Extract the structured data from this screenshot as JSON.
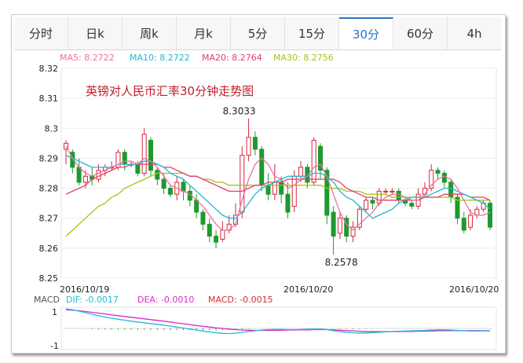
{
  "tabs": [
    {
      "label": "分时",
      "active": false
    },
    {
      "label": "日k",
      "active": false
    },
    {
      "label": "周k",
      "active": false
    },
    {
      "label": "月k",
      "active": false
    },
    {
      "label": "5分",
      "active": false
    },
    {
      "label": "15分",
      "active": false
    },
    {
      "label": "30分",
      "active": true
    },
    {
      "label": "60分",
      "active": false
    },
    {
      "label": "4h",
      "active": false
    }
  ],
  "colors": {
    "up": "#d6283c",
    "down": "#1c9a2e",
    "ma5": "#ef6fa1",
    "ma10": "#23b5d0",
    "ma20": "#e0406e",
    "ma30": "#a4c414",
    "dif": "#25b9d6",
    "dea": "#d62cc8",
    "macd": "#d72d2d",
    "active_tab": "#2a72c8"
  },
  "chart_data": {
    "type": "candlestick",
    "title": "英镑对人民币汇率30分钟走势图",
    "ma_legend": [
      {
        "label": "MA5: 8.2722",
        "key": "ma5"
      },
      {
        "label": "MA10: 8.2722",
        "key": "ma10"
      },
      {
        "label": "MA20: 8.2764",
        "key": "ma20"
      },
      {
        "label": "MA30: 8.2756",
        "key": "ma30"
      }
    ],
    "yticks": [
      "8.32",
      "8.31",
      "8.3",
      "8.29",
      "8.28",
      "8.27",
      "8.26",
      "8.25"
    ],
    "ylim": [
      8.25,
      8.32
    ],
    "xticks": [
      "2016/10/19",
      "2016/10/20",
      "2016/10/20"
    ],
    "annotations": {
      "high": "8.3033",
      "low": "8.2578"
    },
    "candles": [
      [
        8.293,
        8.295,
        8.296,
        8.288
      ],
      [
        8.292,
        8.287,
        8.293,
        8.285
      ],
      [
        8.287,
        8.282,
        8.29,
        8.281
      ],
      [
        8.282,
        8.284,
        8.286,
        8.28
      ],
      [
        8.284,
        8.283,
        8.287,
        8.281
      ],
      [
        8.283,
        8.286,
        8.288,
        8.282
      ],
      [
        8.286,
        8.287,
        8.288,
        8.284
      ],
      [
        8.287,
        8.287,
        8.289,
        8.286
      ],
      [
        8.287,
        8.292,
        8.293,
        8.286
      ],
      [
        8.292,
        8.288,
        8.293,
        8.286
      ],
      [
        8.288,
        8.288,
        8.289,
        8.287
      ],
      [
        8.288,
        8.285,
        8.289,
        8.284
      ],
      [
        8.285,
        8.298,
        8.3,
        8.284
      ],
      [
        8.296,
        8.286,
        8.297,
        8.284
      ],
      [
        8.286,
        8.283,
        8.287,
        8.281
      ],
      [
        8.283,
        8.28,
        8.285,
        8.278
      ],
      [
        8.28,
        8.278,
        8.281,
        8.277
      ],
      [
        8.278,
        8.282,
        8.284,
        8.276
      ],
      [
        8.282,
        8.279,
        8.283,
        8.276
      ],
      [
        8.279,
        8.276,
        8.281,
        8.274
      ],
      [
        8.276,
        8.272,
        8.278,
        8.27
      ],
      [
        8.272,
        8.268,
        8.273,
        8.266
      ],
      [
        8.268,
        8.264,
        8.27,
        8.262
      ],
      [
        8.264,
        8.262,
        8.266,
        8.26
      ],
      [
        8.263,
        8.266,
        8.269,
        8.262
      ],
      [
        8.266,
        8.268,
        8.271,
        8.265
      ],
      [
        8.268,
        8.271,
        8.275,
        8.267
      ],
      [
        8.272,
        8.291,
        8.294,
        8.27
      ],
      [
        8.291,
        8.297,
        8.3033,
        8.289
      ],
      [
        8.297,
        8.293,
        8.299,
        8.291
      ],
      [
        8.293,
        8.281,
        8.294,
        8.279
      ],
      [
        8.281,
        8.278,
        8.285,
        8.276
      ],
      [
        8.278,
        8.282,
        8.288,
        8.276
      ],
      [
        8.282,
        8.278,
        8.284,
        8.275
      ],
      [
        8.278,
        8.272,
        8.282,
        8.27
      ],
      [
        8.274,
        8.284,
        8.286,
        8.272
      ],
      [
        8.284,
        8.287,
        8.289,
        8.282
      ],
      [
        8.287,
        8.282,
        8.288,
        8.28
      ],
      [
        8.282,
        8.296,
        8.297,
        8.281
      ],
      [
        8.294,
        8.286,
        8.295,
        8.283
      ],
      [
        8.286,
        8.271,
        8.287,
        8.268
      ],
      [
        8.272,
        8.264,
        8.274,
        8.2578
      ],
      [
        8.265,
        8.27,
        8.272,
        8.263
      ],
      [
        8.27,
        8.264,
        8.271,
        8.262
      ],
      [
        8.264,
        8.267,
        8.269,
        8.262
      ],
      [
        8.267,
        8.273,
        8.274,
        8.266
      ],
      [
        8.273,
        8.276,
        8.277,
        8.272
      ],
      [
        8.276,
        8.275,
        8.277,
        8.273
      ],
      [
        8.275,
        8.279,
        8.28,
        8.274
      ],
      [
        8.279,
        8.279,
        8.28,
        8.278
      ],
      [
        8.279,
        8.279,
        8.28,
        8.278
      ],
      [
        8.279,
        8.276,
        8.28,
        8.275
      ],
      [
        8.276,
        8.275,
        8.277,
        8.274
      ],
      [
        8.275,
        8.274,
        8.276,
        8.273
      ],
      [
        8.274,
        8.278,
        8.28,
        8.273
      ],
      [
        8.278,
        8.28,
        8.282,
        8.277
      ],
      [
        8.28,
        8.286,
        8.288,
        8.279
      ],
      [
        8.286,
        8.285,
        8.287,
        8.283
      ],
      [
        8.285,
        8.282,
        8.286,
        8.28
      ],
      [
        8.282,
        8.277,
        8.283,
        8.275
      ],
      [
        8.277,
        8.27,
        8.278,
        8.268
      ],
      [
        8.27,
        8.266,
        8.272,
        8.265
      ],
      [
        8.267,
        8.271,
        8.273,
        8.266
      ],
      [
        8.271,
        8.273,
        8.274,
        8.27
      ],
      [
        8.273,
        8.275,
        8.276,
        8.272
      ],
      [
        8.275,
        8.267,
        8.276,
        8.266
      ]
    ],
    "ma_lines": {
      "ma5": [
        8.294,
        8.29,
        8.287,
        8.285,
        8.284,
        8.285,
        8.286,
        8.287,
        8.288,
        8.289,
        8.289,
        8.288,
        8.29,
        8.289,
        8.287,
        8.284,
        8.281,
        8.28,
        8.279,
        8.278,
        8.276,
        8.274,
        8.271,
        8.268,
        8.266,
        8.266,
        8.268,
        8.276,
        8.283,
        8.288,
        8.29,
        8.288,
        8.284,
        8.283,
        8.28,
        8.281,
        8.283,
        8.284,
        8.287,
        8.288,
        8.284,
        8.278,
        8.272,
        8.268,
        8.266,
        8.268,
        8.27,
        8.272,
        8.275,
        8.277,
        8.278,
        8.278,
        8.277,
        8.276,
        8.276,
        8.278,
        8.281,
        8.283,
        8.284,
        8.283,
        8.28,
        8.276,
        8.272,
        8.271,
        8.271,
        8.272
      ],
      "ma10": [
        8.291,
        8.29,
        8.289,
        8.288,
        8.287,
        8.287,
        8.287,
        8.287,
        8.288,
        8.288,
        8.288,
        8.288,
        8.289,
        8.289,
        8.288,
        8.287,
        8.285,
        8.284,
        8.283,
        8.281,
        8.279,
        8.277,
        8.275,
        8.273,
        8.271,
        8.27,
        8.27,
        8.272,
        8.275,
        8.278,
        8.28,
        8.281,
        8.282,
        8.283,
        8.284,
        8.284,
        8.284,
        8.284,
        8.285,
        8.285,
        8.284,
        8.282,
        8.279,
        8.277,
        8.276,
        8.274,
        8.272,
        8.27,
        8.271,
        8.272,
        8.273,
        8.275,
        8.276,
        8.277,
        8.277,
        8.277,
        8.278,
        8.279,
        8.28,
        8.28,
        8.279,
        8.278,
        8.277,
        8.276,
        8.275,
        8.273
      ],
      "ma20": [
        8.278,
        8.279,
        8.28,
        8.281,
        8.283,
        8.284,
        8.285,
        8.286,
        8.287,
        8.287,
        8.288,
        8.288,
        8.288,
        8.288,
        8.288,
        8.287,
        8.287,
        8.286,
        8.285,
        8.284,
        8.284,
        8.283,
        8.282,
        8.281,
        8.28,
        8.279,
        8.279,
        8.279,
        8.28,
        8.281,
        8.281,
        8.282,
        8.282,
        8.282,
        8.283,
        8.283,
        8.283,
        8.283,
        8.283,
        8.283,
        8.283,
        8.283,
        8.282,
        8.28,
        8.279,
        8.278,
        8.277,
        8.277,
        8.276,
        8.276,
        8.276,
        8.276,
        8.276,
        8.276,
        8.276,
        8.277,
        8.277,
        8.277,
        8.278,
        8.278,
        8.278,
        8.278,
        8.277,
        8.277,
        8.277,
        8.276
      ],
      "ma30": [
        8.264,
        8.266,
        8.268,
        8.27,
        8.272,
        8.274,
        8.275,
        8.277,
        8.278,
        8.28,
        8.281,
        8.282,
        8.283,
        8.284,
        8.285,
        8.285,
        8.285,
        8.285,
        8.285,
        8.284,
        8.284,
        8.283,
        8.283,
        8.282,
        8.282,
        8.281,
        8.281,
        8.281,
        8.281,
        8.281,
        8.281,
        8.281,
        8.281,
        8.281,
        8.281,
        8.281,
        8.281,
        8.281,
        8.281,
        8.281,
        8.28,
        8.28,
        8.28,
        8.279,
        8.279,
        8.279,
        8.278,
        8.278,
        8.278,
        8.278,
        8.277,
        8.277,
        8.277,
        8.277,
        8.277,
        8.277,
        8.277,
        8.277,
        8.277,
        8.277,
        8.276,
        8.276,
        8.276,
        8.276,
        8.276,
        8.276
      ]
    },
    "macd": {
      "legend": [
        {
          "label": "MACD",
          "key": "none"
        },
        {
          "label": "DIF: -0.0017",
          "key": "dif"
        },
        {
          "label": "DEA: -0.0010",
          "key": "dea"
        },
        {
          "label": "MACD: -0.0015",
          "key": "macd"
        }
      ],
      "yticks": [
        "1",
        "-1"
      ],
      "ylim": [
        -1,
        1
      ],
      "dif": [
        1.0,
        0.95,
        0.88,
        0.8,
        0.72,
        0.65,
        0.58,
        0.52,
        0.47,
        0.42,
        0.37,
        0.33,
        0.29,
        0.25,
        0.21,
        0.17,
        0.12,
        0.07,
        0.02,
        -0.03,
        -0.08,
        -0.13,
        -0.18,
        -0.22,
        -0.25,
        -0.26,
        -0.24,
        -0.2,
        -0.16,
        -0.12,
        -0.08,
        -0.06,
        -0.05,
        -0.05,
        -0.06,
        -0.06,
        -0.05,
        -0.04,
        -0.03,
        -0.03,
        -0.06,
        -0.11,
        -0.16,
        -0.2,
        -0.22,
        -0.23,
        -0.23,
        -0.21,
        -0.19,
        -0.17,
        -0.15,
        -0.14,
        -0.13,
        -0.12,
        -0.11,
        -0.1,
        -0.08,
        -0.07,
        -0.07,
        -0.08,
        -0.1,
        -0.12,
        -0.13,
        -0.13,
        -0.12,
        -0.13
      ],
      "dea": [
        0.95,
        0.93,
        0.9,
        0.86,
        0.82,
        0.78,
        0.74,
        0.69,
        0.65,
        0.61,
        0.57,
        0.53,
        0.49,
        0.45,
        0.41,
        0.37,
        0.33,
        0.28,
        0.24,
        0.2,
        0.15,
        0.11,
        0.07,
        0.03,
        0.0,
        -0.03,
        -0.06,
        -0.08,
        -0.09,
        -0.1,
        -0.1,
        -0.1,
        -0.09,
        -0.09,
        -0.08,
        -0.08,
        -0.07,
        -0.07,
        -0.06,
        -0.06,
        -0.06,
        -0.07,
        -0.09,
        -0.11,
        -0.12,
        -0.14,
        -0.15,
        -0.16,
        -0.16,
        -0.16,
        -0.16,
        -0.16,
        -0.15,
        -0.15,
        -0.14,
        -0.14,
        -0.13,
        -0.12,
        -0.11,
        -0.11,
        -0.11,
        -0.11,
        -0.11,
        -0.11,
        -0.11,
        -0.12
      ],
      "hist": [
        0.1,
        0.05,
        -0.05,
        -0.12,
        -0.2,
        -0.26,
        -0.32,
        -0.34,
        -0.36,
        -0.38,
        -0.4,
        -0.4,
        -0.4,
        -0.4,
        -0.4,
        -0.4,
        -0.42,
        -0.42,
        -0.44,
        -0.46,
        -0.46,
        -0.48,
        -0.5,
        -0.5,
        -0.5,
        -0.46,
        -0.36,
        -0.24,
        -0.14,
        -0.04,
        0.04,
        0.08,
        0.08,
        0.08,
        0.04,
        0.04,
        0.04,
        0.06,
        0.06,
        0.06,
        0.0,
        -0.08,
        -0.14,
        -0.18,
        -0.2,
        -0.18,
        -0.16,
        -0.1,
        -0.06,
        -0.02,
        0.02,
        0.04,
        0.04,
        0.06,
        0.06,
        0.08,
        0.1,
        0.1,
        0.08,
        0.06,
        0.02,
        -0.02,
        -0.04,
        -0.04,
        -0.02,
        -0.02
      ]
    }
  }
}
